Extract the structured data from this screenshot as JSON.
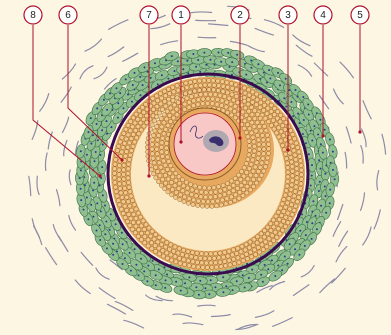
{
  "diagram": {
    "colors": {
      "background": "#fdf6e3",
      "granulosa_green": "#8fbf8f",
      "granulosa_border": "#3c6f4a",
      "zone_orange": "#e7a860",
      "cell_tan": "#f2c98a",
      "cell_border": "#8a5a26",
      "antrum": "#fbe9c3",
      "ring_dark": "#3a0b4e",
      "leader_red": "#b0102a",
      "oocyte_pink": "#f7c8c6",
      "nucleus_gray": "#b0a8b0",
      "nucleus_dark": "#3a2e6e",
      "wave_gray": "#8d8ba8"
    },
    "callouts": [
      {
        "id": "c8",
        "label": "8"
      },
      {
        "id": "c6",
        "label": "6"
      },
      {
        "id": "c7",
        "label": "7"
      },
      {
        "id": "c1",
        "label": "1"
      },
      {
        "id": "c2",
        "label": "2"
      },
      {
        "id": "c3",
        "label": "3"
      },
      {
        "id": "c4",
        "label": "4"
      },
      {
        "id": "c5",
        "label": "5"
      }
    ]
  }
}
